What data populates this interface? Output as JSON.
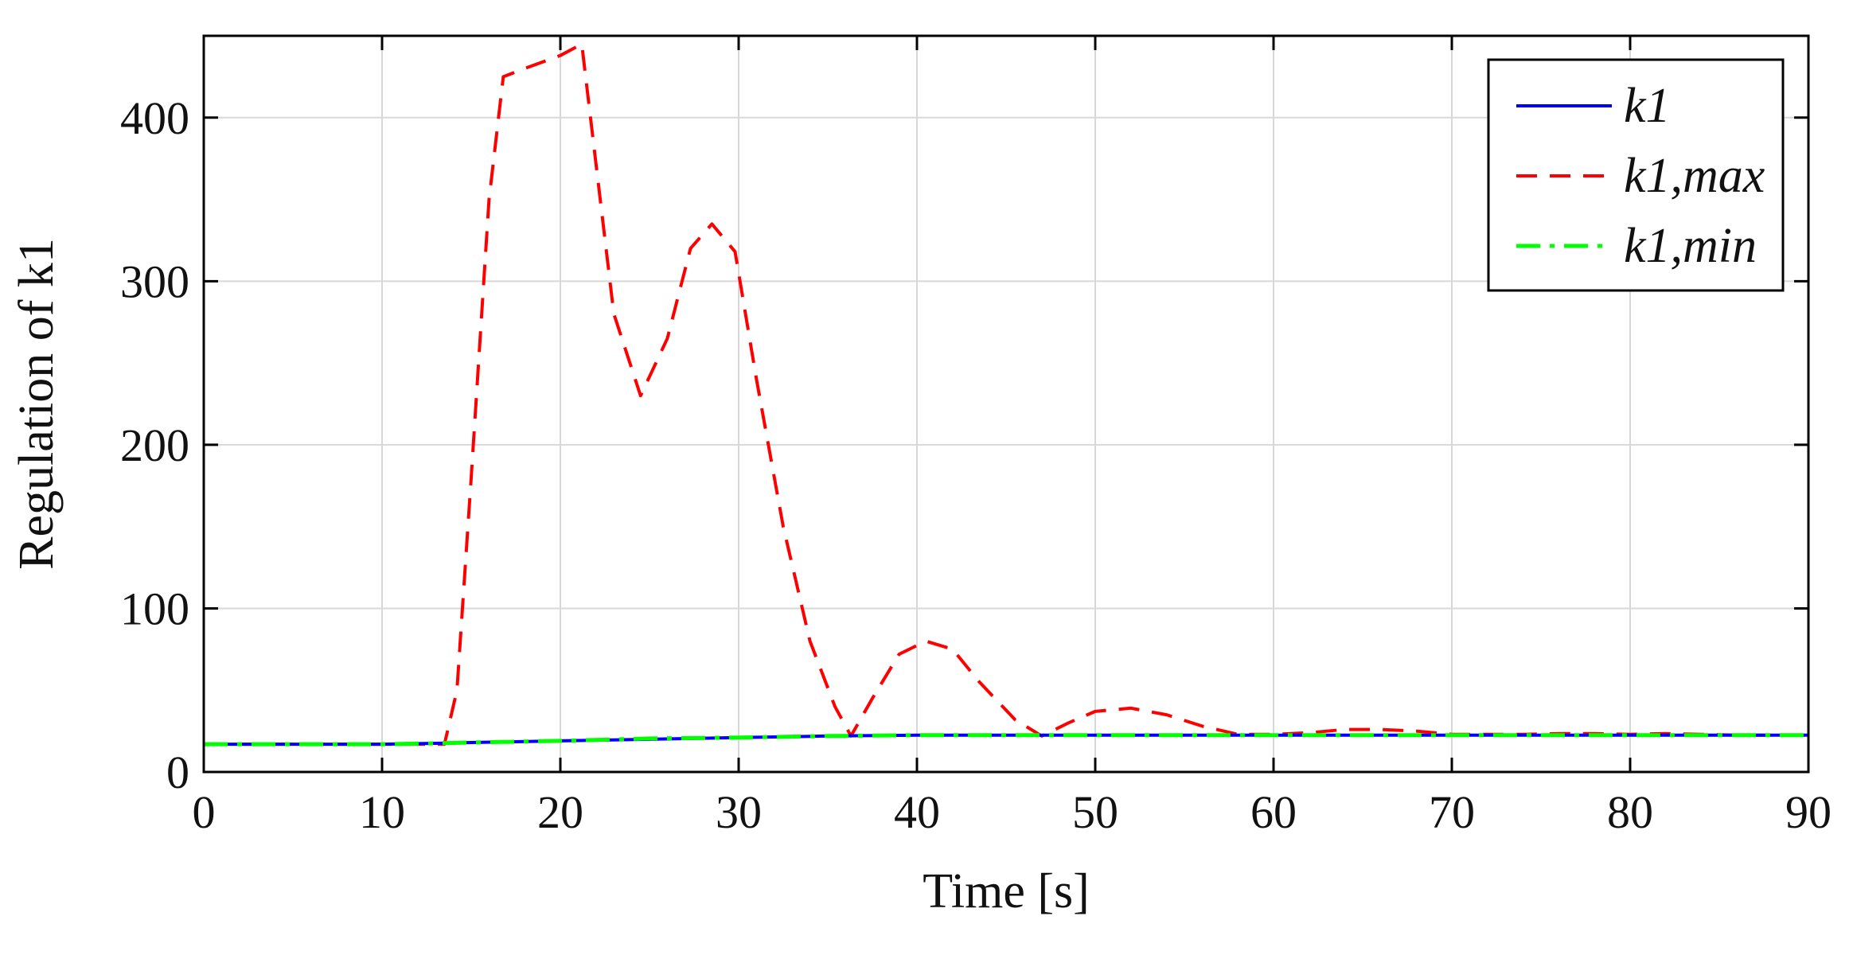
{
  "colors": {
    "k1": "#0000ff",
    "k1_max": "#ff0000",
    "k1_min": "#00ff00",
    "grid": "#d8d8d8",
    "axis": "#000000"
  },
  "chart_data": {
    "type": "line",
    "xlabel": "Time [s]",
    "ylabel": "Regulation of k1",
    "xlim": [
      0,
      90
    ],
    "ylim": [
      0,
      450
    ],
    "xticks": [
      0,
      10,
      20,
      30,
      40,
      50,
      60,
      70,
      80,
      90
    ],
    "yticks": [
      0,
      100,
      200,
      300,
      400
    ],
    "grid": true,
    "legend_position": "top-right",
    "series": [
      {
        "name": "k1",
        "style": "solid",
        "color": "#0000ff",
        "x": [
          0,
          5,
          10,
          13,
          15,
          20,
          25,
          30,
          35,
          40,
          45,
          50,
          60,
          70,
          80,
          90
        ],
        "y": [
          17,
          17,
          17,
          17.5,
          18,
          19,
          20,
          21,
          22,
          22.5,
          22.5,
          22.5,
          22.5,
          22.5,
          22.5,
          22.5
        ]
      },
      {
        "name": "k1,max",
        "style": "dashed",
        "color": "#ff0000",
        "x": [
          0,
          10,
          13.5,
          14.2,
          15,
          16,
          16.8,
          18,
          20,
          21.2,
          21.8,
          23,
          24.5,
          26,
          27.3,
          28.5,
          29.8,
          31,
          32.5,
          34,
          35.4,
          36.3,
          37.5,
          39,
          40.5,
          42,
          43.5,
          45.5,
          47,
          48.5,
          50,
          52,
          54,
          56,
          58,
          60,
          62,
          64,
          66,
          68,
          70,
          72,
          74,
          76,
          78,
          80,
          82,
          84,
          86,
          88,
          90
        ],
        "y": [
          17,
          17,
          17,
          50,
          180,
          350,
          425,
          430,
          438,
          445,
          390,
          280,
          230,
          265,
          320,
          335,
          318,
          240,
          150,
          80,
          40,
          22,
          45,
          72,
          80,
          75,
          55,
          32,
          22,
          30,
          37,
          39,
          35,
          28,
          23,
          23,
          24,
          26,
          26,
          25,
          23,
          23,
          23,
          23.5,
          23.5,
          23,
          23.5,
          23,
          22.5,
          22.5,
          22.5
        ]
      },
      {
        "name": "k1,min",
        "style": "dash-dot",
        "color": "#00ff00",
        "x": [
          0,
          5,
          10,
          13,
          15,
          20,
          25,
          30,
          35,
          40,
          45,
          50,
          60,
          70,
          80,
          90
        ],
        "y": [
          17,
          17,
          17,
          17.5,
          18,
          19,
          20.5,
          21,
          22,
          22.5,
          22.5,
          22.5,
          22.5,
          22.5,
          22.5,
          22.5
        ]
      }
    ]
  }
}
